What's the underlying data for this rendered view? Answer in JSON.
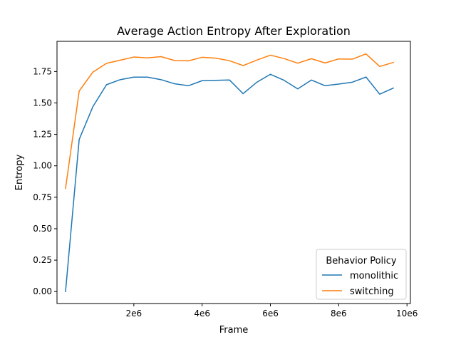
{
  "chart_data": {
    "type": "line",
    "title": "Average Action Entropy After Exploration",
    "xlabel": "Frame",
    "ylabel": "Entropy",
    "xlim": [
      -250000,
      10100000
    ],
    "ylim": [
      -0.095,
      1.99
    ],
    "xticks": [
      {
        "value": 2000000,
        "label": "2e6"
      },
      {
        "value": 4000000,
        "label": "4e6"
      },
      {
        "value": 6000000,
        "label": "6e6"
      },
      {
        "value": 8000000,
        "label": "8e6"
      },
      {
        "value": 10000000,
        "label": "10e6"
      }
    ],
    "yticks": [
      {
        "value": 0.0,
        "label": "0.00"
      },
      {
        "value": 0.25,
        "label": "0.25"
      },
      {
        "value": 0.5,
        "label": "0.50"
      },
      {
        "value": 0.75,
        "label": "0.75"
      },
      {
        "value": 1.0,
        "label": "1.00"
      },
      {
        "value": 1.25,
        "label": "1.25"
      },
      {
        "value": 1.5,
        "label": "1.50"
      },
      {
        "value": 1.75,
        "label": "1.75"
      }
    ],
    "grid": false,
    "legend": {
      "title": "Behavior Policy",
      "placement": "lower-right"
    },
    "x": [
      0,
      400000,
      800000,
      1200000,
      1600000,
      2000000,
      2400000,
      2800000,
      3200000,
      3600000,
      4000000,
      4400000,
      4800000,
      5200000,
      5600000,
      6000000,
      6400000,
      6800000,
      7200000,
      7600000,
      8000000,
      8400000,
      8800000,
      9200000,
      9600000
    ],
    "series": [
      {
        "name": "monolithic",
        "color": "#1f77b4",
        "values": [
          0.0,
          1.21,
          1.47,
          1.645,
          1.685,
          1.705,
          1.705,
          1.685,
          1.652,
          1.637,
          1.677,
          1.68,
          1.683,
          1.574,
          1.664,
          1.728,
          1.68,
          1.612,
          1.682,
          1.637,
          1.65,
          1.665,
          1.706,
          1.57,
          1.618
        ]
      },
      {
        "name": "switching",
        "color": "#ff7f0e",
        "values": [
          0.82,
          1.595,
          1.745,
          1.815,
          1.84,
          1.865,
          1.858,
          1.868,
          1.837,
          1.835,
          1.863,
          1.856,
          1.836,
          1.797,
          1.84,
          1.88,
          1.853,
          1.816,
          1.852,
          1.818,
          1.85,
          1.848,
          1.89,
          1.79,
          1.822
        ]
      }
    ]
  }
}
